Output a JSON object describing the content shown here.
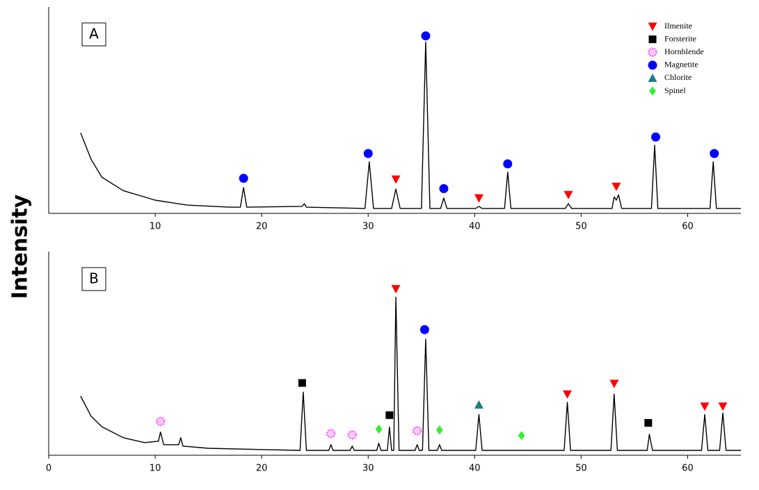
{
  "chart_data": [
    {
      "type": "line",
      "label": "A",
      "ylabel": "Intensity",
      "xlim": [
        0,
        65
      ],
      "xticks": [
        10,
        20,
        30,
        40,
        50,
        60
      ],
      "ylim": [
        0,
        100
      ],
      "series": [
        {
          "color": "#000000",
          "x": [
            3.0,
            4,
            5,
            7,
            10,
            13,
            17,
            18.0,
            18.3,
            18.6,
            23.8,
            24.0,
            24.2,
            29.7,
            30.1,
            30.5,
            32.2,
            32.6,
            33.0,
            35.0,
            35.4,
            35.8,
            36.8,
            37.1,
            37.4,
            40.1,
            40.4,
            40.7,
            42.8,
            43.1,
            43.4,
            48.5,
            48.8,
            49.1,
            52.9,
            53.1,
            53.3,
            53.5,
            53.8,
            56.6,
            56.9,
            57.2,
            62.1,
            62.4,
            62.7,
            65
          ],
          "values": [
            39,
            26,
            17.5,
            11,
            6.4,
            4,
            3,
            3,
            12.5,
            3,
            3.4,
            4.7,
            3,
            2.4,
            25,
            2.4,
            2.4,
            11.8,
            2.4,
            2.4,
            83,
            2.4,
            2.4,
            7.4,
            2.4,
            2.4,
            3.4,
            2.4,
            2.4,
            20,
            2.4,
            2.4,
            4.7,
            2.4,
            2.4,
            8,
            6.4,
            9,
            2.4,
            2.4,
            33,
            2.4,
            2.4,
            25,
            2.4,
            2.4
          ]
        }
      ],
      "legend": {
        "position": "top-right",
        "entries": [
          {
            "name": "Ilmenite",
            "color": "#ff0000",
            "marker": "triangle-down"
          },
          {
            "name": "Forsterite",
            "color": "#000000",
            "marker": "square"
          },
          {
            "name": "Hornblende",
            "color": "#ff55ff",
            "marker": "sunburst"
          },
          {
            "name": "Magnetite",
            "color": "#0000ff",
            "marker": "circle"
          },
          {
            "name": "Chlorite",
            "color": "#1a7f7f",
            "marker": "triangle-up"
          },
          {
            "name": "Spinel",
            "color": "#33ee33",
            "marker": "diamond"
          }
        ]
      },
      "markers": [
        {
          "phase": "Magnetite",
          "x": 18.3,
          "y": 17
        },
        {
          "phase": "Magnetite",
          "x": 30.0,
          "y": 29
        },
        {
          "phase": "Magnetite",
          "x": 35.4,
          "y": 86
        },
        {
          "phase": "Magnetite",
          "x": 37.1,
          "y": 12
        },
        {
          "phase": "Magnetite",
          "x": 43.1,
          "y": 24
        },
        {
          "phase": "Magnetite",
          "x": 57.0,
          "y": 37
        },
        {
          "phase": "Magnetite",
          "x": 62.5,
          "y": 29
        },
        {
          "phase": "Ilmenite",
          "x": 32.6,
          "y": 16.5
        },
        {
          "phase": "Ilmenite",
          "x": 40.4,
          "y": 7.4
        },
        {
          "phase": "Ilmenite",
          "x": 48.8,
          "y": 9
        },
        {
          "phase": "Ilmenite",
          "x": 53.3,
          "y": 13
        }
      ]
    },
    {
      "type": "line",
      "label": "B",
      "xlim": [
        0,
        65
      ],
      "xticks": [
        0,
        10,
        20,
        30,
        40,
        50,
        60
      ],
      "ylim": [
        0,
        100
      ],
      "series": [
        {
          "color": "#000000",
          "x": [
            3.0,
            4,
            5,
            7,
            9,
            10.3,
            10.5,
            10.8,
            12.2,
            12.4,
            12.6,
            15,
            20,
            23.6,
            23.9,
            24.2,
            26.3,
            26.5,
            26.7,
            28.3,
            28.5,
            28.7,
            30.8,
            31.0,
            31.2,
            31.8,
            32.0,
            32.2,
            32.4,
            32.6,
            32.9,
            34.4,
            34.6,
            34.8,
            35.1,
            35.4,
            35.7,
            36.5,
            36.7,
            36.9,
            40.1,
            40.4,
            40.7,
            48.4,
            48.7,
            49.0,
            52.8,
            53.1,
            53.4,
            56.2,
            56.4,
            56.7,
            61.3,
            61.6,
            61.9,
            63.0,
            63.3,
            63.6,
            65
          ],
          "values": [
            29,
            19,
            14,
            8.6,
            6.2,
            6.9,
            11.4,
            5.2,
            5.2,
            8.6,
            4.5,
            3.4,
            2.8,
            2.4,
            31,
            2.4,
            2.4,
            5.2,
            2.4,
            2.4,
            4.5,
            2.4,
            2.4,
            5.9,
            2.4,
            2.4,
            13.8,
            2.4,
            2.4,
            77.6,
            2.4,
            2.4,
            5.2,
            2.4,
            2.4,
            57,
            2.4,
            2.4,
            5.2,
            2.4,
            2.4,
            20,
            2.4,
            2.4,
            26,
            2.4,
            2.4,
            30,
            2.4,
            2.4,
            10.3,
            2.4,
            2.4,
            20,
            2.4,
            2.4,
            20.7,
            2.4,
            2.4
          ]
        }
      ],
      "markers": [
        {
          "phase": "Hornblende",
          "x": 10.5,
          "y": 16.6
        },
        {
          "phase": "Hornblende",
          "x": 26.5,
          "y": 10.7
        },
        {
          "phase": "Hornblende",
          "x": 28.5,
          "y": 10
        },
        {
          "phase": "Hornblende",
          "x": 34.6,
          "y": 12
        },
        {
          "phase": "Forsterite",
          "x": 23.8,
          "y": 35.5
        },
        {
          "phase": "Forsterite",
          "x": 32.0,
          "y": 19.7
        },
        {
          "phase": "Forsterite",
          "x": 56.3,
          "y": 15.9
        },
        {
          "phase": "Ilmenite",
          "x": 32.6,
          "y": 81.7
        },
        {
          "phase": "Ilmenite",
          "x": 48.7,
          "y": 30
        },
        {
          "phase": "Ilmenite",
          "x": 53.1,
          "y": 35.2
        },
        {
          "phase": "Ilmenite",
          "x": 61.6,
          "y": 24
        },
        {
          "phase": "Ilmenite",
          "x": 63.3,
          "y": 24
        },
        {
          "phase": "Magnetite",
          "x": 35.3,
          "y": 61.7
        },
        {
          "phase": "Chlorite",
          "x": 40.4,
          "y": 24.8
        },
        {
          "phase": "Spinel",
          "x": 31.0,
          "y": 12.8
        },
        {
          "phase": "Spinel",
          "x": 36.7,
          "y": 12.4
        },
        {
          "phase": "Spinel",
          "x": 44.4,
          "y": 9.7
        }
      ]
    }
  ]
}
